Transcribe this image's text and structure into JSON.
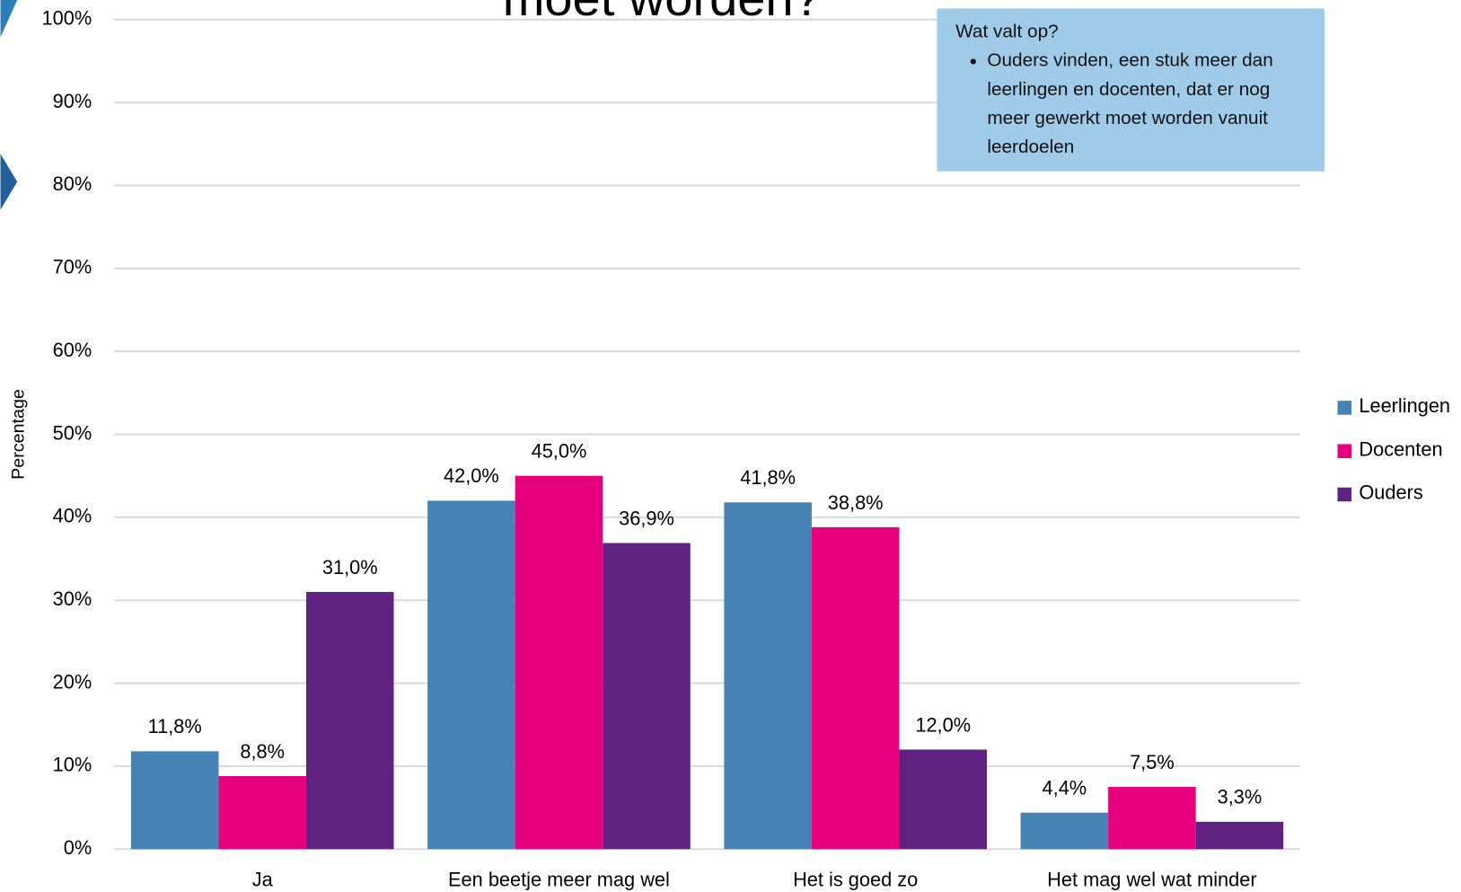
{
  "chart_data": {
    "type": "bar",
    "title": "moet worden?",
    "y_label": "Percentage",
    "categories": [
      "Ja",
      "Een beetje meer mag wel",
      "Het is goed zo",
      "Het mag wel wat minder"
    ],
    "series": [
      {
        "name": "Leerlingen",
        "color": "#4682b4",
        "values": [
          11.8,
          42.0,
          41.8,
          4.4
        ],
        "value_labels": [
          "11,8%",
          "42,0%",
          "41,8%",
          "4,4%"
        ]
      },
      {
        "name": "Docenten",
        "color": "#e6007e",
        "values": [
          8.8,
          45.0,
          38.8,
          7.5
        ],
        "value_labels": [
          "8,8%",
          "45,0%",
          "38,8%",
          "7,5%"
        ]
      },
      {
        "name": "Ouders",
        "color": "#5f2280",
        "values": [
          31.0,
          36.9,
          12.0,
          3.3
        ],
        "value_labels": [
          "31,0%",
          "36,9%",
          "12,0%",
          "3,3%"
        ]
      }
    ],
    "ylim": [
      0,
      100
    ],
    "yticks": [
      {
        "value": 0,
        "label": "0%"
      },
      {
        "value": 10,
        "label": "10%"
      },
      {
        "value": 20,
        "label": "20%"
      },
      {
        "value": 30,
        "label": "30%"
      },
      {
        "value": 40,
        "label": "40%"
      },
      {
        "value": 50,
        "label": "50%"
      },
      {
        "value": 60,
        "label": "60%"
      },
      {
        "value": 70,
        "label": "70%"
      },
      {
        "value": 80,
        "label": "80%"
      },
      {
        "value": 90,
        "label": "90%"
      },
      {
        "value": 100,
        "label": "100%"
      }
    ],
    "grid": true,
    "legend": "right",
    "annotation": {
      "heading": "Wat valt op?",
      "bullets": [
        "Ouders vinden, een stuk meer dan leerlingen en docenten, dat er nog meer gewerkt moet worden vanuit leerdoelen"
      ]
    }
  }
}
